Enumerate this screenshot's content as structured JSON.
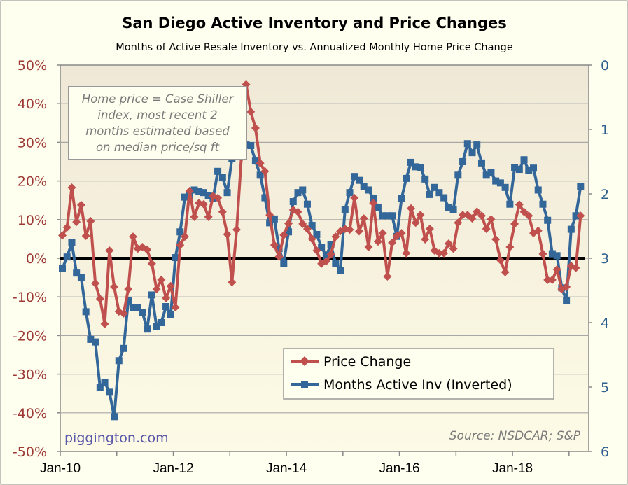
{
  "chart_data": {
    "type": "line",
    "title": "San Diego Active Inventory and Price Changes",
    "subtitle": "Months of Active Resale Inventory vs. Annualized Monthly Home Price Change",
    "x_start": "Jan-10",
    "x_frequency": "monthly",
    "x_ticks": [
      "Jan-10",
      "Jan-12",
      "Jan-14",
      "Jan-16",
      "Jan-18"
    ],
    "y_left": {
      "ticks": [
        "50%",
        "40%",
        "30%",
        "20%",
        "10%",
        "0%",
        "-10%",
        "-20%",
        "-30%",
        "-40%",
        "-50%"
      ],
      "range": [
        -50,
        50
      ],
      "unit": "%"
    },
    "y_right": {
      "ticks": [
        "0",
        "1",
        "2",
        "3",
        "4",
        "5",
        "6"
      ],
      "range": [
        0,
        6
      ],
      "inverted": true
    },
    "grid": true,
    "zero_line": true,
    "legend_placement": "bottom-right",
    "series": [
      {
        "name": "Price Change",
        "axis": "left",
        "color": "#c0504d",
        "marker": "diamond",
        "values": [
          5.9,
          8,
          18.3,
          9.4,
          13.8,
          5.8,
          9.6,
          -6.5,
          -10.5,
          -17,
          2,
          -7.4,
          -13.8,
          -14.3,
          -8,
          5.6,
          2.5,
          2.9,
          2.2,
          -1.4,
          -8,
          -5.6,
          -10.3,
          -7.2,
          -12.7,
          3.4,
          5.6,
          17.4,
          10.7,
          14.3,
          14,
          10.7,
          16.1,
          15.6,
          12,
          6.2,
          -6.2,
          7.4,
          26,
          45,
          37.9,
          33.7,
          24.6,
          22.5,
          11.2,
          3.4,
          0.4,
          6,
          9,
          12.5,
          12,
          8.9,
          7.6,
          5,
          2,
          -1.4,
          -0.8,
          1,
          5.6,
          7,
          7.6,
          7.4,
          15.6,
          7,
          10.3,
          2.9,
          14.3,
          4.3,
          6.5,
          -4.7,
          4,
          5.8,
          6.5,
          1.3,
          12.9,
          9.2,
          11.2,
          4.9,
          7.6,
          2,
          1.3,
          1.3,
          3.8,
          2.5,
          9.2,
          11.2,
          11.2,
          10.3,
          12.1,
          11,
          7.6,
          10.1,
          4.9,
          -0.5,
          -3.6,
          2.9,
          8.9,
          13.9,
          12,
          11,
          6.5,
          7.1,
          1.1,
          -5.6,
          -5.6,
          -2.9,
          -8,
          -7.4,
          -2,
          -2.5,
          11
        ]
      },
      {
        "name": "Months Active Inv (Inverted)",
        "axis": "right",
        "color": "#336699",
        "marker": "square",
        "values": [
          3.16,
          2.98,
          2.76,
          3.23,
          3.3,
          3.83,
          4.26,
          4.3,
          5.0,
          4.93,
          5.08,
          5.46,
          4.59,
          4.4,
          3.66,
          3.77,
          3.77,
          3.84,
          4.1,
          3.57,
          4.06,
          4.0,
          3.75,
          3.88,
          2.99,
          2.59,
          2.05,
          2.03,
          1.94,
          1.96,
          1.98,
          2.03,
          2.07,
          1.65,
          1.74,
          1.98,
          1.45,
          1.3,
          1.15,
          1.24,
          1.25,
          1.49,
          1.71,
          2.06,
          2.45,
          2.39,
          2.85,
          3.08,
          2.59,
          2.12,
          1.98,
          1.94,
          2.16,
          2.49,
          2.63,
          2.83,
          2.96,
          2.79,
          3.08,
          3.19,
          2.25,
          1.98,
          1.73,
          1.79,
          1.89,
          1.94,
          2.07,
          2.21,
          2.34,
          2.34,
          2.34,
          2.66,
          2.07,
          1.76,
          1.51,
          1.58,
          1.59,
          1.77,
          2.01,
          1.9,
          1.98,
          2.06,
          2.21,
          2.25,
          1.71,
          1.5,
          1.22,
          1.36,
          1.24,
          1.52,
          1.71,
          1.67,
          1.8,
          1.83,
          1.9,
          2.16,
          1.59,
          1.62,
          1.47,
          1.64,
          1.6,
          1.94,
          2.16,
          2.41,
          2.93,
          2.96,
          3.46,
          3.66,
          2.55,
          2.34,
          1.89
        ]
      }
    ],
    "annotation": [
      "Home price = Case Shiller",
      "index, most recent 2",
      "months estimated based",
      "on median price/sq ft"
    ],
    "watermark": "piggington.com",
    "source": "Source: NSDCAR; S&P"
  }
}
